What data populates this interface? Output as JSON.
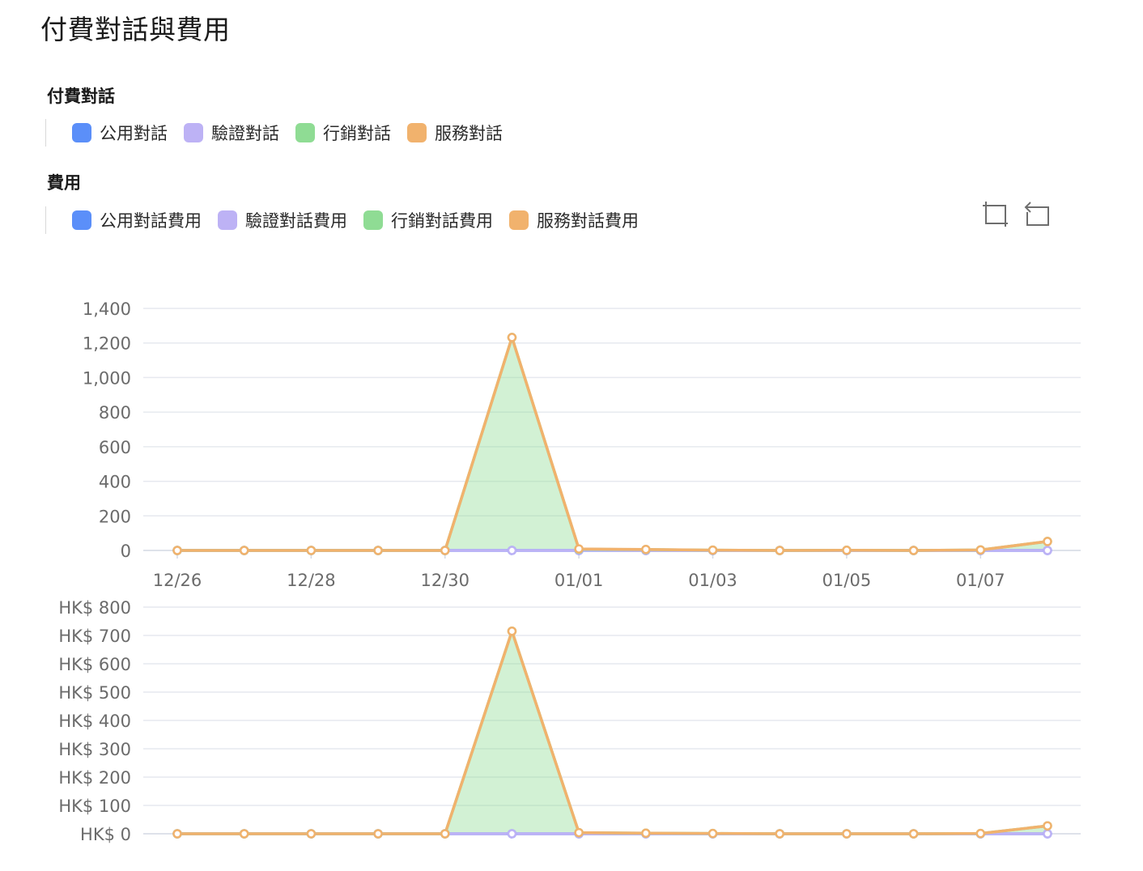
{
  "page": {
    "title": "付費對話與費用"
  },
  "legends": {
    "conversations": {
      "title": "付費對話",
      "items": [
        {
          "label": "公用對話",
          "color": "#5b8ff9"
        },
        {
          "label": "驗證對話",
          "color": "#bdb2f5"
        },
        {
          "label": "行銷對話",
          "color": "#8fdc94"
        },
        {
          "label": "服務對話",
          "color": "#f1b26d"
        }
      ]
    },
    "costs": {
      "title": "費用",
      "items": [
        {
          "label": "公用對話費用",
          "color": "#5b8ff9"
        },
        {
          "label": "驗證對話費用",
          "color": "#bdb2f5"
        },
        {
          "label": "行銷對話費用",
          "color": "#8fdc94"
        },
        {
          "label": "服務對話費用",
          "color": "#f1b26d"
        }
      ]
    }
  },
  "toolbox": {
    "icons": [
      "zoom-select-icon",
      "zoom-reset-icon"
    ]
  },
  "chart_data": [
    {
      "type": "area",
      "x": [
        "12/26",
        "12/27",
        "12/28",
        "12/29",
        "12/30",
        "12/31",
        "01/01",
        "01/02",
        "01/03",
        "01/04",
        "01/05",
        "01/06",
        "01/07",
        "01/08"
      ],
      "xtick_labels": [
        "12/26",
        "12/28",
        "12/30",
        "01/01",
        "01/03",
        "01/05",
        "01/07"
      ],
      "ylim": [
        0,
        1400
      ],
      "yticks": [
        0,
        200,
        400,
        600,
        800,
        1000,
        1200,
        1400
      ],
      "ytick_labels": [
        "0",
        "200",
        "400",
        "600",
        "800",
        "1,000",
        "1,200",
        "1,400"
      ],
      "grid": true,
      "series": [
        {
          "name": "公用對話",
          "color": "#5b8ff9",
          "values": [
            0,
            0,
            0,
            0,
            0,
            0,
            0,
            0,
            0,
            0,
            0,
            0,
            0,
            0
          ]
        },
        {
          "name": "驗證對話",
          "color": "#bdb2f5",
          "values": [
            0,
            0,
            0,
            0,
            0,
            0,
            0,
            0,
            0,
            0,
            0,
            0,
            0,
            0
          ]
        },
        {
          "name": "行銷對話",
          "color": "#8fdc94",
          "values": [
            0,
            0,
            0,
            0,
            0,
            1232,
            7,
            5,
            2,
            0,
            1,
            0,
            3,
            52
          ]
        },
        {
          "name": "服務對話",
          "color": "#f1b26d",
          "values": [
            0,
            0,
            0,
            0,
            0,
            0,
            2,
            1,
            0,
            0,
            0,
            0,
            0,
            0
          ]
        }
      ]
    },
    {
      "type": "area",
      "x": [
        "12/26",
        "12/27",
        "12/28",
        "12/29",
        "12/30",
        "12/31",
        "01/01",
        "01/02",
        "01/03",
        "01/04",
        "01/05",
        "01/06",
        "01/07",
        "01/08"
      ],
      "ylim": [
        0,
        800
      ],
      "yticks": [
        0,
        100,
        200,
        300,
        400,
        500,
        600,
        700,
        800
      ],
      "ytick_labels": [
        "HK$ 0",
        "HK$ 100",
        "HK$ 200",
        "HK$ 300",
        "HK$ 400",
        "HK$ 500",
        "HK$ 600",
        "HK$ 700",
        "HK$ 800"
      ],
      "grid": true,
      "series": [
        {
          "name": "公用對話費用",
          "color": "#5b8ff9",
          "values": [
            0,
            0,
            0,
            0,
            0,
            0,
            0,
            0,
            0,
            0,
            0,
            0,
            0,
            0
          ]
        },
        {
          "name": "驗證對話費用",
          "color": "#bdb2f5",
          "values": [
            0,
            0,
            0,
            0,
            0,
            0,
            0,
            0,
            0,
            0,
            0,
            0,
            0,
            0
          ]
        },
        {
          "name": "行銷對話費用",
          "color": "#8fdc94",
          "values": [
            0,
            0,
            0,
            0,
            0,
            715,
            4,
            2,
            1,
            0,
            0,
            0,
            1,
            28
          ]
        },
        {
          "name": "服務對話費用",
          "color": "#f1b26d",
          "values": [
            0,
            0,
            0,
            0,
            0,
            0,
            0,
            0,
            0,
            0,
            0,
            0,
            0,
            0
          ]
        }
      ]
    }
  ]
}
